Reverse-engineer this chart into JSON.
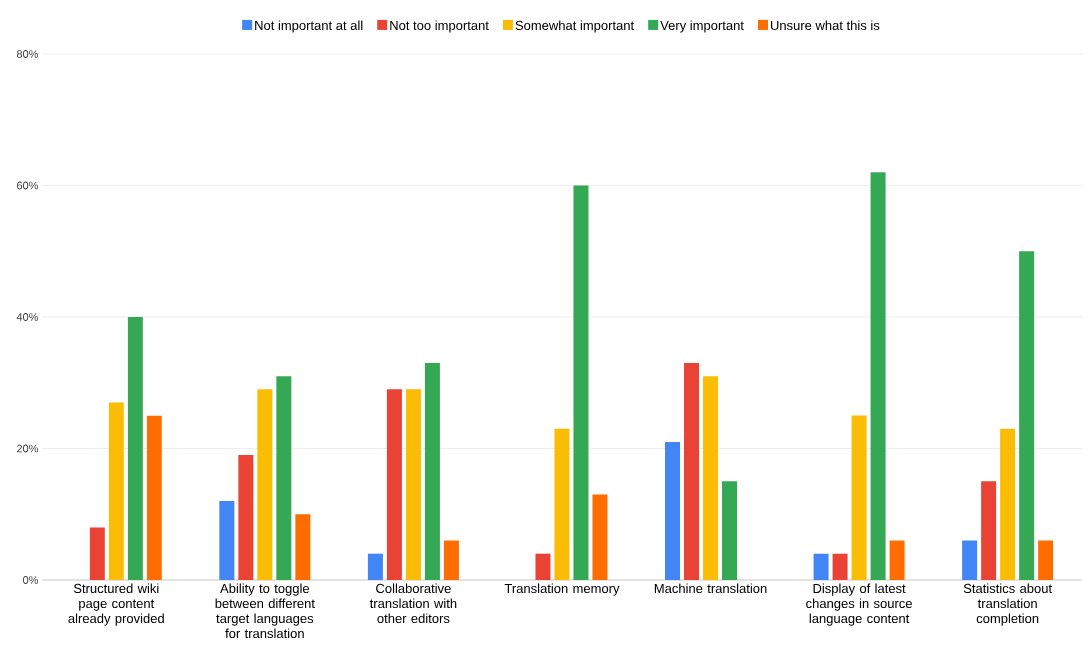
{
  "chart_data": {
    "type": "bar",
    "categories": [
      "Structured wiki page content already provided",
      "Ability to toggle between different target languages for translation",
      "Collaborative translation with other editors",
      "Translation memory",
      "Machine translation",
      "Display of latest changes in source language content",
      "Statistics about translation completion"
    ],
    "series": [
      {
        "name": "Not important at all",
        "color": "#4285f4",
        "values": [
          0,
          12,
          4,
          0,
          21,
          4,
          6
        ]
      },
      {
        "name": "Not too important",
        "color": "#ea4335",
        "values": [
          8,
          19,
          29,
          4,
          33,
          4,
          15
        ]
      },
      {
        "name": "Somewhat important",
        "color": "#fbbc04",
        "values": [
          27,
          29,
          29,
          23,
          31,
          25,
          23
        ]
      },
      {
        "name": "Very important",
        "color": "#34a853",
        "values": [
          40,
          31,
          33,
          60,
          15,
          62,
          50
        ]
      },
      {
        "name": "Unsure what this is",
        "color": "#ff6d01",
        "values": [
          25,
          10,
          6,
          13,
          0,
          6,
          6
        ]
      }
    ],
    "ylim": [
      0,
      80
    ],
    "yticks": [
      {
        "value": 0,
        "label": "0%"
      },
      {
        "value": 20,
        "label": "20%"
      },
      {
        "value": 40,
        "label": "40%"
      },
      {
        "value": 60,
        "label": "60%"
      },
      {
        "value": 80,
        "label": "80%"
      }
    ],
    "grid": "y",
    "legend": "top"
  }
}
